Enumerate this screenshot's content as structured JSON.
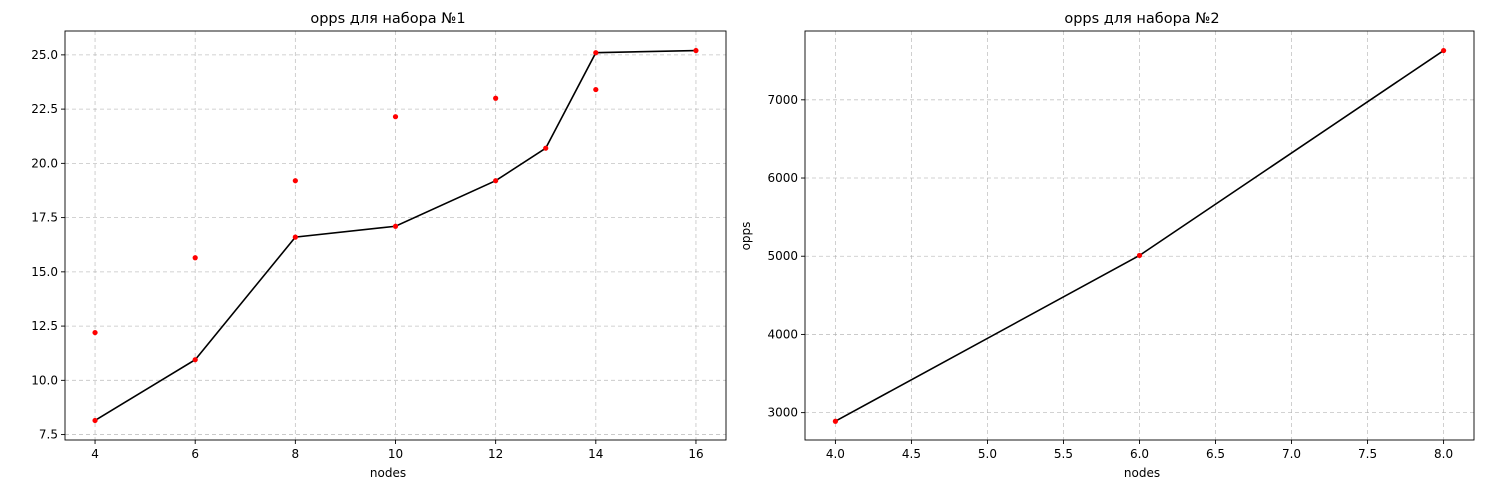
{
  "chart_data": [
    {
      "type": "line",
      "title": "opps для набора №1",
      "xlabel": "nodes",
      "ylabel": "",
      "xlim": [
        3.4,
        16.6
      ],
      "ylim": [
        7.25,
        26.1
      ],
      "xticks": [
        4,
        6,
        8,
        10,
        12,
        14,
        16
      ],
      "xtick_labels": [
        "4",
        "6",
        "8",
        "10",
        "12",
        "14",
        "16"
      ],
      "yticks": [
        7.5,
        10.0,
        12.5,
        15.0,
        17.5,
        20.0,
        22.5,
        25.0
      ],
      "ytick_labels": [
        "7.5",
        "10.0",
        "12.5",
        "15.0",
        "17.5",
        "20.0",
        "22.5",
        "25.0"
      ],
      "grid": true,
      "line": {
        "color": "#000000",
        "x": [
          4,
          6,
          8,
          10,
          12,
          13,
          14,
          16
        ],
        "y": [
          8.15,
          10.95,
          16.6,
          17.1,
          19.2,
          20.7,
          25.1,
          25.2
        ]
      },
      "points": {
        "color": "#ff0000",
        "x": [
          4,
          4,
          6,
          6,
          8,
          8,
          10,
          10,
          12,
          12,
          13,
          14,
          14,
          16
        ],
        "y": [
          8.15,
          12.2,
          10.95,
          15.65,
          16.6,
          19.2,
          17.1,
          22.15,
          19.2,
          23.0,
          20.7,
          25.1,
          23.4,
          25.2
        ]
      }
    },
    {
      "type": "line",
      "title": "opps для набора №2",
      "xlabel": "nodes",
      "ylabel": "opps",
      "xlim": [
        3.8,
        8.2
      ],
      "ylim": [
        2650,
        7880
      ],
      "xticks": [
        4.0,
        4.5,
        5.0,
        5.5,
        6.0,
        6.5,
        7.0,
        7.5,
        8.0
      ],
      "xtick_labels": [
        "4.0",
        "4.5",
        "5.0",
        "5.5",
        "6.0",
        "6.5",
        "7.0",
        "7.5",
        "8.0"
      ],
      "yticks": [
        3000,
        4000,
        5000,
        6000,
        7000
      ],
      "ytick_labels": [
        "3000",
        "4000",
        "5000",
        "6000",
        "7000"
      ],
      "grid": true,
      "line": {
        "color": "#000000",
        "x": [
          4,
          6,
          8
        ],
        "y": [
          2890,
          5010,
          7630
        ]
      },
      "points": {
        "color": "#ff0000",
        "x": [
          4,
          6,
          8
        ],
        "y": [
          2890,
          5010,
          7630
        ]
      }
    }
  ]
}
